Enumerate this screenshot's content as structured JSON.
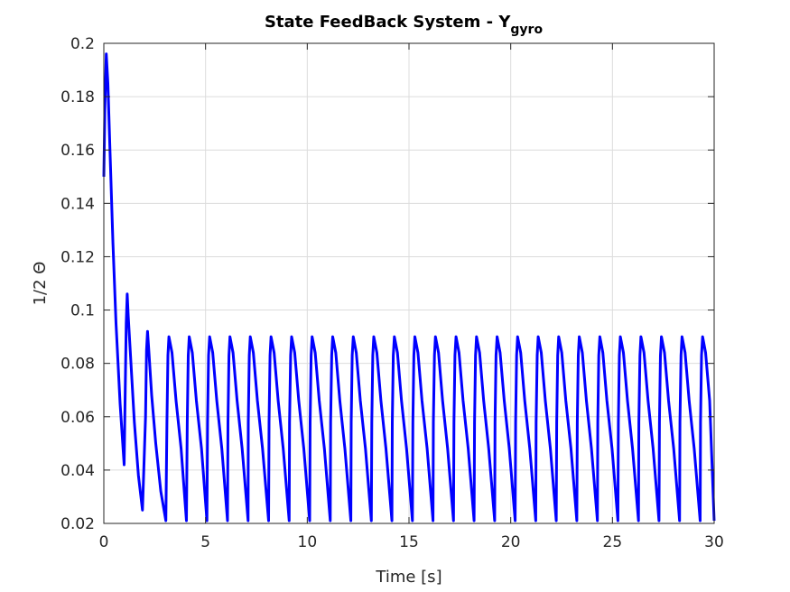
{
  "chart_data": {
    "type": "line",
    "title": "State FeedBack System - Y",
    "title_subscript": "gyro",
    "xlabel": "Time [s]",
    "ylabel": "1/2 Θ",
    "xlim": [
      0,
      30
    ],
    "ylim": [
      0.02,
      0.2
    ],
    "xticks": [
      0,
      5,
      10,
      15,
      20,
      25,
      30
    ],
    "xtick_labels": [
      "0",
      "5",
      "10",
      "15",
      "20",
      "25",
      "30"
    ],
    "yticks": [
      0.02,
      0.04,
      0.06,
      0.08,
      0.1,
      0.12,
      0.14,
      0.16,
      0.18,
      0.2
    ],
    "ytick_labels": [
      "0.02",
      "0.04",
      "0.06",
      "0.08",
      "0.1",
      "0.12",
      "0.14",
      "0.16",
      "0.18",
      "0.2"
    ],
    "grid": true,
    "series": [
      {
        "color": "#0000ff",
        "x": [
          0,
          0.05,
          0.12,
          0.2,
          0.3,
          0.45,
          0.6,
          0.8,
          1.0,
          1.05,
          1.1,
          1.15,
          1.2,
          1.35,
          1.5,
          1.7,
          1.9,
          2.05,
          2.1,
          2.15,
          2.2,
          2.35,
          2.55,
          2.8,
          3.05,
          3.1,
          3.15,
          3.2,
          3.35,
          3.55,
          3.8,
          4.06,
          4.1,
          4.15,
          4.2,
          4.35,
          4.55,
          4.8,
          5.07,
          5.1,
          5.15,
          5.2,
          5.35,
          5.55,
          5.8,
          6.08,
          6.1,
          6.15,
          6.2,
          6.35,
          6.55,
          6.8,
          7.09,
          7.1,
          7.15,
          7.2,
          7.35,
          7.55,
          7.8,
          8.1,
          8.12,
          8.17,
          8.22,
          8.37,
          8.57,
          8.82,
          9.11,
          9.13,
          9.18,
          9.23,
          9.38,
          9.58,
          9.83,
          10.12,
          10.14,
          10.19,
          10.24,
          10.39,
          10.59,
          10.84,
          11.13,
          11.15,
          11.2,
          11.25,
          11.4,
          11.6,
          11.85,
          12.14,
          12.16,
          12.21,
          12.26,
          12.41,
          12.61,
          12.86,
          13.15,
          13.17,
          13.22,
          13.27,
          13.42,
          13.62,
          13.87,
          14.16,
          14.18,
          14.23,
          14.28,
          14.43,
          14.63,
          14.88,
          15.17,
          15.19,
          15.24,
          15.29,
          15.44,
          15.64,
          15.89,
          16.18,
          16.2,
          16.25,
          16.3,
          16.45,
          16.65,
          16.9,
          17.19,
          17.21,
          17.26,
          17.31,
          17.46,
          17.66,
          17.91,
          18.2,
          18.22,
          18.27,
          18.32,
          18.47,
          18.67,
          18.92,
          19.21,
          19.23,
          19.28,
          19.33,
          19.48,
          19.68,
          19.93,
          20.22,
          20.24,
          20.29,
          20.34,
          20.49,
          20.69,
          20.94,
          21.23,
          21.25,
          21.3,
          21.35,
          21.5,
          21.7,
          21.95,
          22.24,
          22.26,
          22.31,
          22.36,
          22.51,
          22.71,
          22.96,
          23.25,
          23.27,
          23.32,
          23.37,
          23.52,
          23.72,
          23.97,
          24.26,
          24.28,
          24.33,
          24.38,
          24.53,
          24.73,
          24.98,
          25.27,
          25.29,
          25.34,
          25.39,
          25.54,
          25.74,
          25.99,
          26.28,
          26.3,
          26.35,
          26.4,
          26.55,
          26.75,
          27.0,
          27.29,
          27.31,
          27.36,
          27.41,
          27.56,
          27.76,
          28.01,
          28.3,
          28.32,
          28.37,
          28.42,
          28.57,
          28.77,
          29.02,
          29.31,
          29.33,
          29.38,
          29.43,
          29.58,
          29.78,
          30.0
        ],
        "values": [
          0.15,
          0.175,
          0.196,
          0.185,
          0.16,
          0.125,
          0.095,
          0.065,
          0.042,
          0.07,
          0.095,
          0.106,
          0.098,
          0.078,
          0.058,
          0.038,
          0.025,
          0.06,
          0.085,
          0.092,
          0.086,
          0.068,
          0.05,
          0.032,
          0.021,
          0.058,
          0.083,
          0.09,
          0.084,
          0.066,
          0.048,
          0.021,
          0.058,
          0.083,
          0.09,
          0.084,
          0.066,
          0.048,
          0.021,
          0.058,
          0.083,
          0.09,
          0.084,
          0.066,
          0.048,
          0.021,
          0.058,
          0.083,
          0.09,
          0.084,
          0.066,
          0.048,
          0.021,
          0.058,
          0.083,
          0.09,
          0.084,
          0.066,
          0.048,
          0.021,
          0.058,
          0.083,
          0.09,
          0.084,
          0.066,
          0.048,
          0.021,
          0.058,
          0.083,
          0.09,
          0.084,
          0.066,
          0.048,
          0.021,
          0.058,
          0.083,
          0.09,
          0.084,
          0.066,
          0.048,
          0.021,
          0.058,
          0.083,
          0.09,
          0.084,
          0.066,
          0.048,
          0.021,
          0.058,
          0.083,
          0.09,
          0.084,
          0.066,
          0.048,
          0.021,
          0.058,
          0.083,
          0.09,
          0.084,
          0.066,
          0.048,
          0.021,
          0.058,
          0.083,
          0.09,
          0.084,
          0.066,
          0.048,
          0.021,
          0.058,
          0.083,
          0.09,
          0.084,
          0.066,
          0.048,
          0.021,
          0.058,
          0.083,
          0.09,
          0.084,
          0.066,
          0.048,
          0.021,
          0.058,
          0.083,
          0.09,
          0.084,
          0.066,
          0.048,
          0.021,
          0.058,
          0.083,
          0.09,
          0.084,
          0.066,
          0.048,
          0.021,
          0.058,
          0.083,
          0.09,
          0.084,
          0.066,
          0.048,
          0.021,
          0.058,
          0.083,
          0.09,
          0.084,
          0.066,
          0.048,
          0.021,
          0.058,
          0.083,
          0.09,
          0.084,
          0.066,
          0.048,
          0.021,
          0.058,
          0.083,
          0.09,
          0.084,
          0.066,
          0.048,
          0.021,
          0.058,
          0.083,
          0.09,
          0.084,
          0.066,
          0.048,
          0.021,
          0.058,
          0.083,
          0.09,
          0.084,
          0.066,
          0.048,
          0.021,
          0.058,
          0.083,
          0.09,
          0.084,
          0.066,
          0.048,
          0.021,
          0.058,
          0.083,
          0.09,
          0.084,
          0.066,
          0.048,
          0.021,
          0.058,
          0.083,
          0.09,
          0.084,
          0.066,
          0.048,
          0.021,
          0.058,
          0.083,
          0.09,
          0.084,
          0.066,
          0.048,
          0.021,
          0.058,
          0.083,
          0.09,
          0.084,
          0.066,
          0.021
        ]
      }
    ]
  }
}
